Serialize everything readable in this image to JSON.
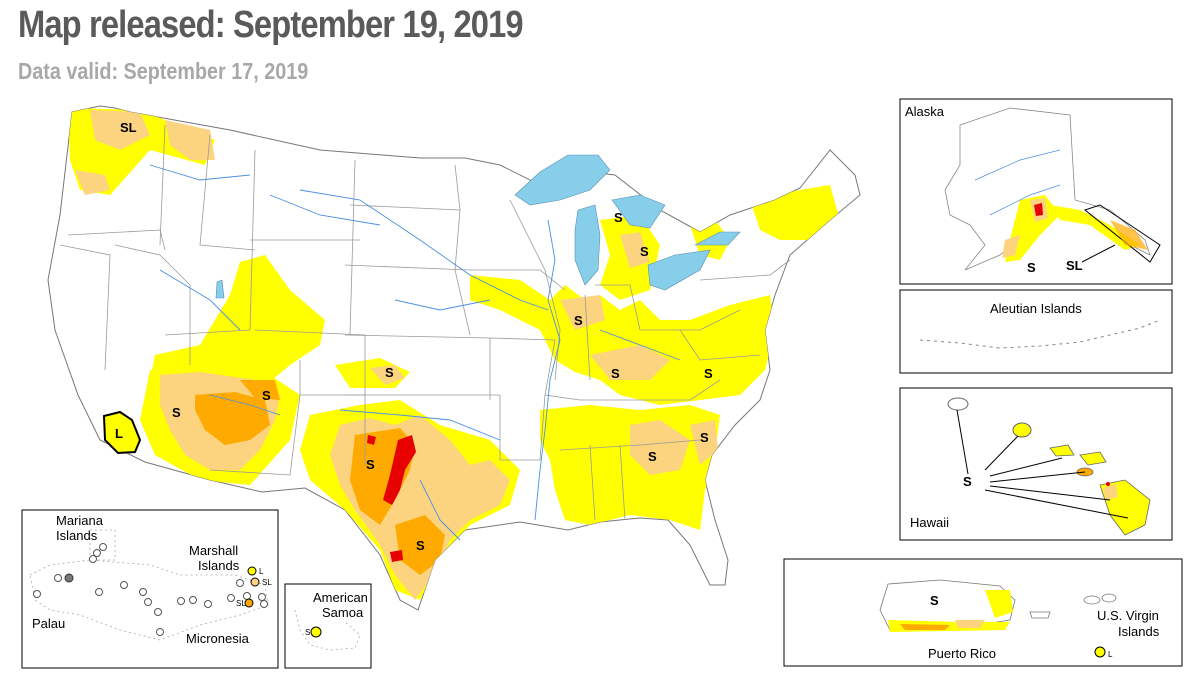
{
  "header": {
    "title": "Map released: September 19, 2019",
    "subtitle": "Data valid: September 17, 2019"
  },
  "colors": {
    "d0_abnormally_dry": "#ffff00",
    "d1_moderate": "#fcd37f",
    "d2_severe": "#ffaa00",
    "d3_extreme": "#e60000",
    "water": "#87ceeb",
    "state_line": "#9a9a9a",
    "river": "#4a90e2"
  },
  "markers": {
    "pacific_nw": "SL",
    "southern_california": "L",
    "arizona": "S",
    "new_mexico": "S",
    "kansas": "S",
    "central_texas": "S",
    "south_texas": "S",
    "michigan_north": "S",
    "michigan_south": "S",
    "indiana": "S",
    "kentucky": "S",
    "virginia": "S",
    "alabama": "S",
    "carolina": "S"
  },
  "insets": {
    "alaska": {
      "label": "Alaska",
      "marker_s": "S",
      "marker_sl": "SL"
    },
    "aleutian": {
      "label": "Aleutian Islands"
    },
    "hawaii": {
      "label": "Hawaii",
      "marker": "S"
    },
    "puerto_rico": {
      "label": "Puerto Rico",
      "marker": "S"
    },
    "virgin_islands": {
      "label_line1": "U.S. Virgin",
      "label_line2": "Islands",
      "marker": "L"
    },
    "pacific": {
      "mariana_line1": "Mariana",
      "mariana_line2": "Islands",
      "marshall_line1": "Marshall",
      "marshall_line2": "Islands",
      "palau": "Palau",
      "micronesia": "Micronesia",
      "marker_l": "L",
      "marker_sl1": "SL",
      "marker_sl2": "SL"
    },
    "american_samoa": {
      "label_line1": "American",
      "label_line2": "Samoa",
      "marker": "S"
    }
  }
}
